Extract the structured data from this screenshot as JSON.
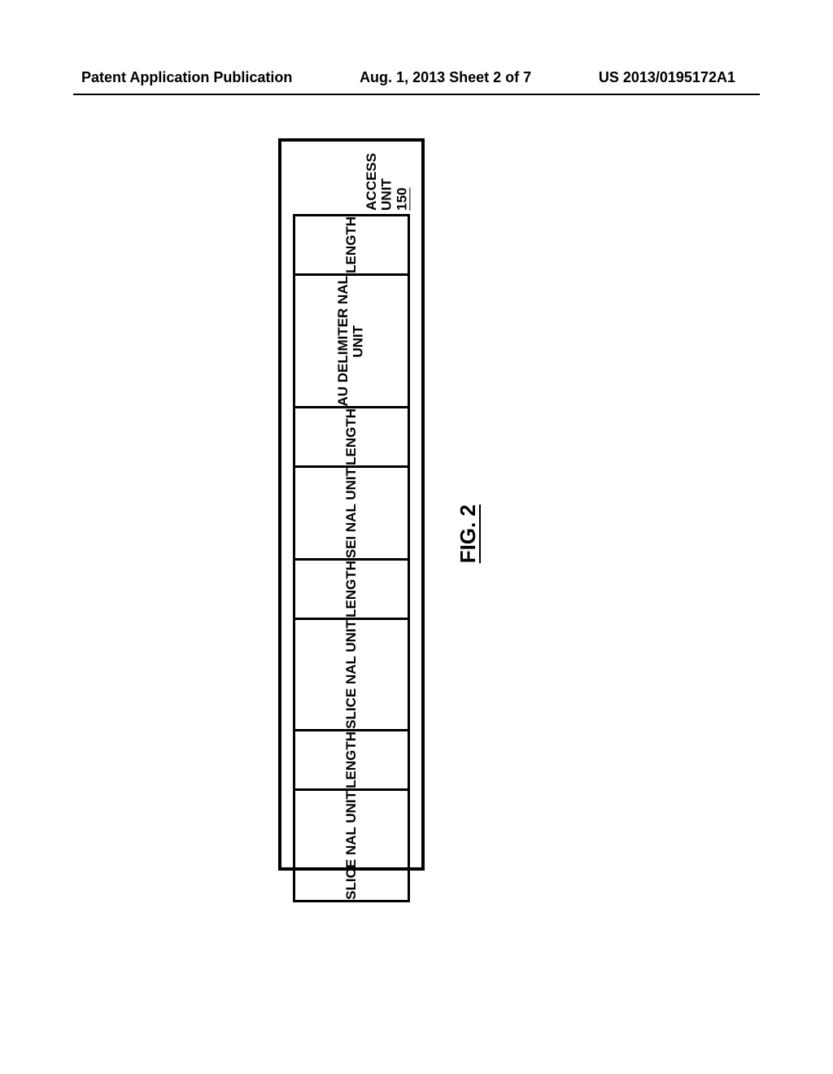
{
  "header": {
    "left": "Patent Application Publication",
    "center": "Aug. 1, 2013  Sheet 2 of 7",
    "right": "US 2013/0195172A1"
  },
  "diagram": {
    "type": "block-sequence",
    "title_prefix": "ACCESS UNIT ",
    "title_number": "150",
    "border_color": "#000000",
    "background_color": "#ffffff",
    "segments": [
      {
        "label": "LENGTH",
        "flex": 0.4,
        "fontsize": 17
      },
      {
        "label": "AU DELIMITER NAL\nUNIT",
        "flex": 1.9,
        "fontsize": 17
      },
      {
        "label": "LENGTH",
        "flex": 0.4,
        "fontsize": 17
      },
      {
        "label": "SEI NAL UNIT",
        "flex": 1.7,
        "fontsize": 17
      },
      {
        "label": "LENGTH",
        "flex": 0.4,
        "fontsize": 17
      },
      {
        "label": "SLICE NAL UNIT",
        "flex": 1.85,
        "fontsize": 17
      },
      {
        "label": "LENGTH",
        "flex": 0.4,
        "fontsize": 17
      },
      {
        "label": "SLICE NAL UNIT",
        "flex": 1.95,
        "fontsize": 17
      }
    ]
  },
  "figure_label": "FIG. 2"
}
